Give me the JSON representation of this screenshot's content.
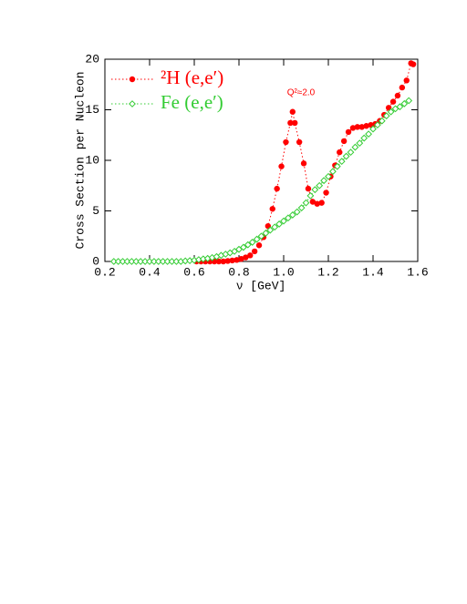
{
  "chart_data": {
    "type": "line",
    "ylabel": "Cross Section per Nucleon",
    "xlabel": "ν [GeV]",
    "annotation": "Q²≈2.0",
    "xlim": [
      0.2,
      1.6
    ],
    "ylim": [
      0,
      20
    ],
    "xticks": [
      0.2,
      0.4,
      0.6,
      0.8,
      {
        "value": 1,
        "label": "1.0"
      },
      1.2,
      1.4,
      1.6
    ],
    "yticks": [
      0,
      5,
      10,
      15,
      20
    ],
    "legend": "top-left",
    "series": [
      {
        "name": "²H (e,e′)",
        "color": "#ff0000",
        "marker": "circle",
        "x": [
          0.61,
          0.63,
          0.65,
          0.67,
          0.69,
          0.71,
          0.73,
          0.75,
          0.77,
          0.79,
          0.81,
          0.83,
          0.85,
          0.87,
          0.89,
          0.91,
          0.93,
          0.95,
          0.97,
          0.99,
          1.01,
          1.03,
          1.04,
          1.05,
          1.07,
          1.09,
          1.11,
          1.13,
          1.15,
          1.17,
          1.19,
          1.21,
          1.23,
          1.25,
          1.27,
          1.29,
          1.31,
          1.33,
          1.35,
          1.37,
          1.39,
          1.41,
          1.43,
          1.45,
          1.47,
          1.49,
          1.51,
          1.53,
          1.55,
          1.57,
          1.58
        ],
        "values": [
          0,
          0,
          0,
          0,
          0,
          0,
          0,
          0.05,
          0.1,
          0.15,
          0.25,
          0.4,
          0.6,
          1.0,
          1.6,
          2.4,
          3.5,
          5.2,
          7.2,
          9.4,
          11.8,
          13.7,
          14.8,
          13.7,
          11.8,
          9.7,
          7.2,
          5.9,
          5.7,
          5.8,
          6.8,
          8.4,
          9.5,
          10.8,
          11.9,
          12.8,
          13.2,
          13.3,
          13.3,
          13.4,
          13.5,
          13.6,
          13.9,
          14.5,
          15.2,
          15.8,
          16.4,
          17.2,
          17.9,
          19.6,
          19.5
        ]
      },
      {
        "name": "Fe (e,e′)",
        "color": "#33cc33",
        "marker": "diamond",
        "x": [
          0.24,
          0.26,
          0.28,
          0.3,
          0.32,
          0.34,
          0.36,
          0.38,
          0.4,
          0.42,
          0.44,
          0.46,
          0.48,
          0.5,
          0.52,
          0.54,
          0.56,
          0.58,
          0.6,
          0.62,
          0.64,
          0.66,
          0.68,
          0.7,
          0.72,
          0.74,
          0.76,
          0.78,
          0.8,
          0.82,
          0.84,
          0.86,
          0.88,
          0.9,
          0.92,
          0.94,
          0.96,
          0.98,
          1.0,
          1.02,
          1.04,
          1.06,
          1.08,
          1.1,
          1.12,
          1.14,
          1.16,
          1.18,
          1.2,
          1.22,
          1.24,
          1.26,
          1.28,
          1.3,
          1.32,
          1.34,
          1.36,
          1.38,
          1.4,
          1.42,
          1.44,
          1.46,
          1.48,
          1.5,
          1.52,
          1.54,
          1.56
        ],
        "values": [
          0,
          0,
          0,
          0,
          0,
          0,
          0,
          0,
          0,
          0,
          0,
          0,
          0,
          0,
          0,
          0,
          0.05,
          0.08,
          0.12,
          0.18,
          0.25,
          0.3,
          0.38,
          0.48,
          0.6,
          0.72,
          0.85,
          1.0,
          1.2,
          1.4,
          1.65,
          1.9,
          2.2,
          2.5,
          2.8,
          3.1,
          3.4,
          3.7,
          4.0,
          4.3,
          4.6,
          4.9,
          5.3,
          5.8,
          6.5,
          7.1,
          7.5,
          8.0,
          8.4,
          8.9,
          9.4,
          9.9,
          10.4,
          10.8,
          11.3,
          11.7,
          12.2,
          12.6,
          13.1,
          13.5,
          13.9,
          14.4,
          14.8,
          15.1,
          15.3,
          15.6,
          15.9
        ]
      }
    ]
  }
}
